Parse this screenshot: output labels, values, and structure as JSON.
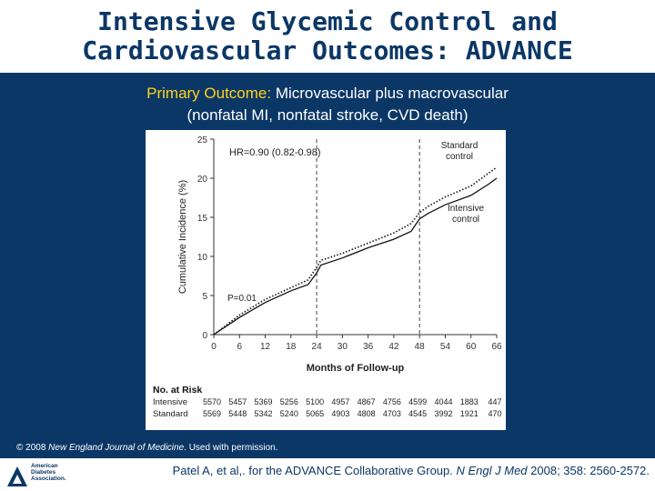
{
  "slide": {
    "title_line1": "Intensive Glycemic Control and",
    "title_line2": "Cardiovascular Outcomes: ADVANCE",
    "subtitle_prefix": "Primary Outcome:",
    "subtitle_rest": " Microvascular plus macrovascular",
    "subtitle_line2": "(nonfatal MI, nonfatal stroke, CVD death)",
    "copyright_prefix": "© 2008 ",
    "copyright_journal": "New England Journal of Medicine",
    "copyright_suffix": ". Used with permission.",
    "citation_prefix": "Patel A, et al,. for the ADVANCE Collaborative Group. ",
    "citation_journal": "N Engl J Med",
    "citation_suffix": " 2008; 358: 2560-2572.",
    "logo_text": [
      "American",
      "Diabetes",
      "Association."
    ]
  },
  "colors": {
    "background": "#0b3766",
    "highlight": "#ffd21f",
    "title": "#0b3766"
  },
  "chart_data": {
    "type": "line",
    "hr_label": "HR=0.90 (0.82-0.98)",
    "p_label": "P=0.01",
    "xlabel": "Months of Follow-up",
    "ylabel": "Cumulative Incidence (%)",
    "xlim": [
      0,
      66
    ],
    "ylim": [
      0,
      25
    ],
    "x_ticks": [
      0,
      6,
      12,
      18,
      24,
      30,
      36,
      42,
      48,
      54,
      60,
      66
    ],
    "y_ticks": [
      0,
      5,
      10,
      15,
      20,
      25
    ],
    "reference_lines_x": [
      24,
      48
    ],
    "series": [
      {
        "name": "Standard control",
        "style": "dotted",
        "points": [
          [
            0,
            0
          ],
          [
            6,
            2.5
          ],
          [
            12,
            4.5
          ],
          [
            18,
            6.0
          ],
          [
            22,
            7.0
          ],
          [
            24,
            8.6
          ],
          [
            25,
            9.5
          ],
          [
            30,
            10.4
          ],
          [
            36,
            11.7
          ],
          [
            42,
            13.0
          ],
          [
            46,
            14.2
          ],
          [
            48,
            15.6
          ],
          [
            50,
            16.4
          ],
          [
            54,
            17.6
          ],
          [
            60,
            19.0
          ],
          [
            64,
            20.6
          ],
          [
            66,
            21.4
          ]
        ]
      },
      {
        "name": "Intensive control",
        "style": "solid",
        "points": [
          [
            0,
            0
          ],
          [
            6,
            2.2
          ],
          [
            12,
            4.1
          ],
          [
            18,
            5.6
          ],
          [
            22,
            6.4
          ],
          [
            24,
            7.9
          ],
          [
            25,
            8.9
          ],
          [
            30,
            9.8
          ],
          [
            36,
            11.1
          ],
          [
            42,
            12.2
          ],
          [
            46,
            13.2
          ],
          [
            48,
            14.8
          ],
          [
            50,
            15.5
          ],
          [
            54,
            16.6
          ],
          [
            60,
            17.8
          ],
          [
            64,
            19.2
          ],
          [
            66,
            20.0
          ]
        ]
      }
    ],
    "at_risk": {
      "header": "No. at Risk",
      "rows": [
        {
          "label": "Intensive",
          "values": [
            "5570",
            "5457",
            "5369",
            "5256",
            "5100",
            "4957",
            "4867",
            "4756",
            "4599",
            "4044",
            "1883",
            "447"
          ]
        },
        {
          "label": "Standard",
          "values": [
            "5569",
            "5448",
            "5342",
            "5240",
            "5065",
            "4903",
            "4808",
            "4703",
            "4545",
            "3992",
            "1921",
            "470"
          ]
        }
      ]
    }
  }
}
